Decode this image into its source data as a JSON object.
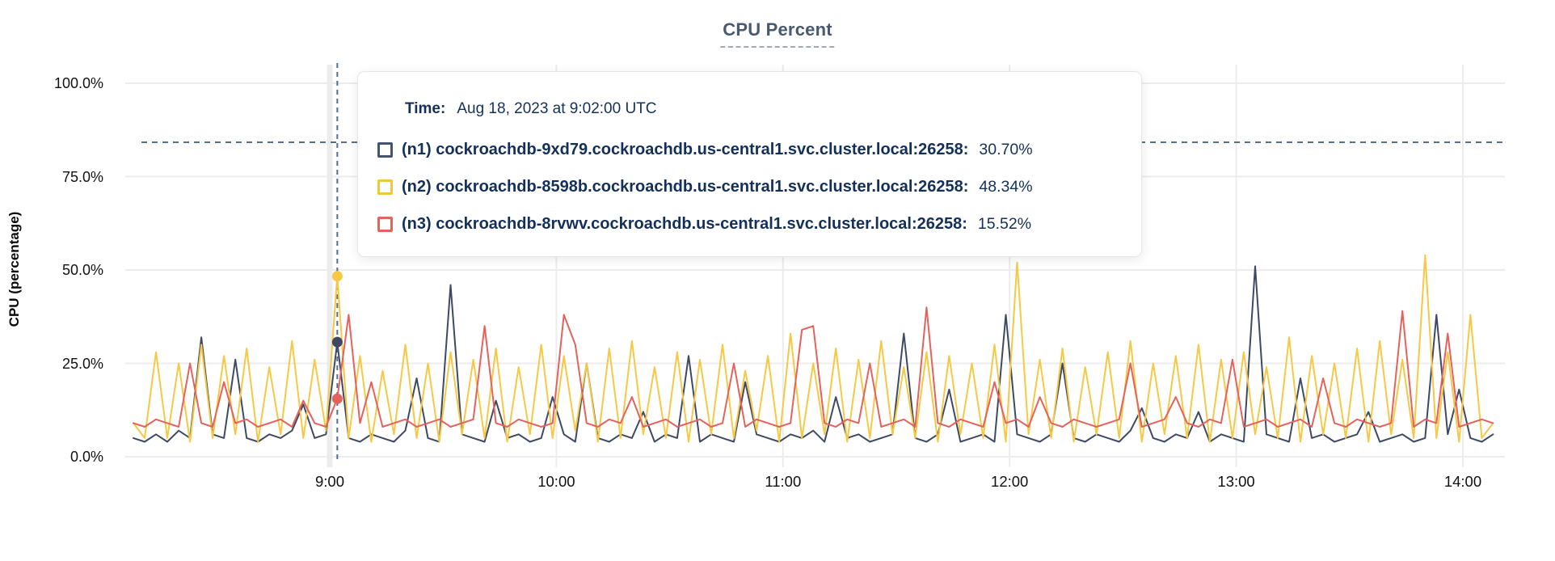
{
  "page": {
    "title": "CPU Percent"
  },
  "y_axis": {
    "label": "CPU (percentage)",
    "ticks": [
      {
        "label": "100.0%",
        "value": 100
      },
      {
        "label": "75.0%",
        "value": 75
      },
      {
        "label": "50.0%",
        "value": 50
      },
      {
        "label": "25.0%",
        "value": 25
      },
      {
        "label": "0.0%",
        "value": 0
      }
    ]
  },
  "x_axis": {
    "ticks": [
      {
        "label": "9:00",
        "minutes": 540,
        "highlight": true
      },
      {
        "label": "10:00",
        "minutes": 600,
        "highlight": false
      },
      {
        "label": "11:00",
        "minutes": 660,
        "highlight": false
      },
      {
        "label": "12:00",
        "minutes": 720,
        "highlight": false
      },
      {
        "label": "13:00",
        "minutes": 780,
        "highlight": false
      },
      {
        "label": "14:00",
        "minutes": 840,
        "highlight": false
      }
    ]
  },
  "tooltip": {
    "time_label": "Time:",
    "time_value": "Aug 18, 2023 at 9:02:00 UTC",
    "rows": [
      {
        "label": "(n1) cockroachdb-9xd79.cockroachdb.us-central1.svc.cluster.local:26258:",
        "value": "30.70%",
        "swatch_color": "#44536e"
      },
      {
        "label": "(n2) cockroachdb-8598b.cockroachdb.us-central1.svc.cluster.local:26258:",
        "value": "48.34%",
        "swatch_color": "#f2c53d"
      },
      {
        "label": "(n3) cockroachdb-8rvwv.cockroachdb.us-central1.svc.cluster.local:26258:",
        "value": "15.52%",
        "swatch_color": "#e5635c"
      }
    ]
  },
  "colors": {
    "series_n1": "#3e4a63",
    "series_n2": "#f6c844",
    "series_n3": "#e5625c",
    "gridline": "#ececec",
    "dashed_annotation": "#54708c",
    "title_text": "#49596f",
    "tooltip_text": "#14305a"
  },
  "chart_data": {
    "type": "line",
    "title": "CPU Percent",
    "xlabel": "",
    "ylabel": "CPU (percentage)",
    "ylim": [
      0,
      100
    ],
    "grid": true,
    "x_start_time": "8:08",
    "x_end_time": "14:08",
    "x_step_minutes": 3,
    "x_start_minutes": 488,
    "x_tick_labels": [
      "9:00",
      "10:00",
      "11:00",
      "12:00",
      "13:00",
      "14:00"
    ],
    "annotations": {
      "threshold_percent": 84.2,
      "hover_index": 18,
      "hover_time": "Aug 18, 2023 at 9:02:00 UTC",
      "hover_values": {
        "n1": 30.7,
        "n2": 48.34,
        "n3": 15.52
      }
    },
    "series": [
      {
        "name": "(n1) cockroachdb-9xd79.cockroachdb.us-central1.svc.cluster.local:26258",
        "short": "n1",
        "color": "#3e4a63",
        "values": [
          5,
          4,
          6,
          4,
          7,
          5,
          32,
          6,
          5,
          26,
          5,
          4,
          6,
          5,
          7,
          14,
          5,
          6,
          30.7,
          5,
          4,
          6,
          5,
          4,
          7,
          21,
          5,
          4,
          46,
          6,
          5,
          4,
          15,
          5,
          6,
          4,
          5,
          16,
          6,
          4,
          25,
          5,
          4,
          6,
          5,
          12,
          4,
          6,
          5,
          27,
          4,
          6,
          5,
          4,
          20,
          6,
          5,
          4,
          6,
          5,
          7,
          4,
          16,
          5,
          6,
          4,
          5,
          6,
          33,
          5,
          4,
          6,
          18,
          4,
          5,
          6,
          4,
          38,
          6,
          5,
          4,
          6,
          25,
          5,
          4,
          6,
          5,
          4,
          7,
          13,
          5,
          4,
          6,
          5,
          12,
          4,
          6,
          5,
          4,
          51,
          6,
          5,
          4,
          21,
          5,
          6,
          4,
          5,
          6,
          12,
          4,
          5,
          6,
          4,
          5,
          38,
          6,
          18,
          5,
          4,
          6
        ]
      },
      {
        "name": "(n2) cockroachdb-8598b.cockroachdb.us-central1.svc.cluster.local:26258",
        "short": "n2",
        "color": "#f6c844",
        "values": [
          9,
          5,
          28,
          5,
          25,
          4,
          30,
          5,
          27,
          6,
          29,
          4,
          24,
          6,
          31,
          5,
          26,
          7,
          48.34,
          5,
          27,
          4,
          23,
          6,
          30,
          5,
          25,
          4,
          28,
          6,
          26,
          5,
          29,
          4,
          24,
          6,
          30,
          5,
          27,
          7,
          25,
          4,
          29,
          5,
          31,
          6,
          24,
          5,
          28,
          4,
          26,
          6,
          30,
          5,
          23,
          7,
          27,
          4,
          33,
          5,
          25,
          6,
          29,
          4,
          26,
          5,
          31,
          6,
          24,
          5,
          28,
          4,
          27,
          6,
          25,
          5,
          30,
          4,
          52,
          6,
          26,
          5,
          29,
          4,
          24,
          6,
          28,
          5,
          31,
          4,
          25,
          6,
          27,
          5,
          30,
          4,
          26,
          5,
          28,
          6,
          24,
          5,
          32,
          4,
          27,
          6,
          25,
          5,
          29,
          4,
          31,
          6,
          26,
          5,
          54,
          5,
          28,
          4,
          38,
          5,
          9
        ]
      },
      {
        "name": "(n3) cockroachdb-8rvwv.cockroachdb.us-central1.svc.cluster.local:26258",
        "short": "n3",
        "color": "#e5625c",
        "values": [
          9,
          8,
          10,
          9,
          8,
          25,
          9,
          8,
          20,
          9,
          10,
          8,
          9,
          10,
          8,
          15,
          9,
          8,
          15.52,
          38,
          9,
          20,
          8,
          9,
          10,
          8,
          9,
          10,
          8,
          9,
          10,
          35,
          9,
          8,
          10,
          9,
          8,
          9,
          38,
          30,
          9,
          8,
          10,
          9,
          16,
          8,
          9,
          10,
          8,
          9,
          10,
          8,
          9,
          25,
          8,
          10,
          9,
          8,
          9,
          34,
          35,
          9,
          8,
          10,
          9,
          25,
          8,
          9,
          10,
          8,
          40,
          9,
          8,
          10,
          9,
          8,
          20,
          9,
          10,
          8,
          16,
          9,
          8,
          10,
          9,
          8,
          9,
          10,
          25,
          8,
          9,
          10,
          16,
          9,
          8,
          10,
          9,
          26,
          8,
          9,
          10,
          8,
          9,
          10,
          8,
          21,
          9,
          8,
          10,
          9,
          8,
          9,
          39,
          8,
          10,
          9,
          33,
          8,
          9,
          10,
          9
        ]
      }
    ]
  }
}
